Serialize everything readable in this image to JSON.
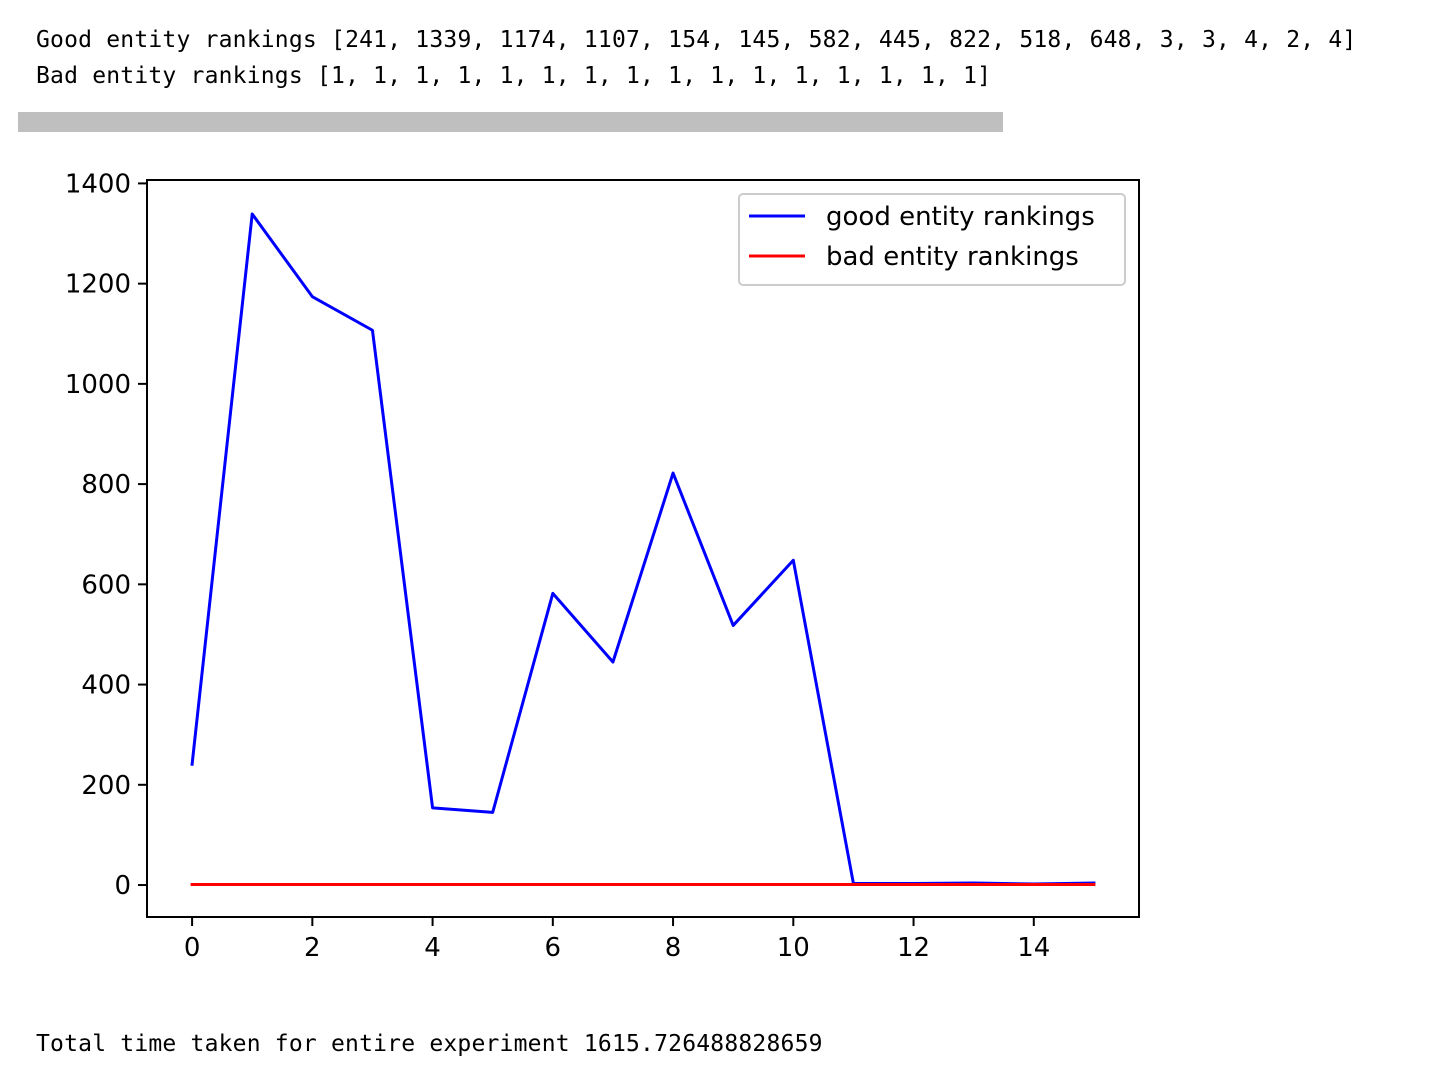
{
  "output": {
    "good_line_label": "Good entity rankings",
    "bad_line_label": "Bad entity rankings",
    "time_label": "Total time taken for entire experiment",
    "time_value": "1615.726488828659"
  },
  "progress": {
    "fraction": 1.0
  },
  "chart_data": {
    "type": "line",
    "x": [
      0,
      1,
      2,
      3,
      4,
      5,
      6,
      7,
      8,
      9,
      10,
      11,
      12,
      13,
      14,
      15
    ],
    "series": [
      {
        "name": "good entity rankings",
        "color": "#0000ff",
        "values": [
          241,
          1339,
          1174,
          1107,
          154,
          145,
          582,
          445,
          822,
          518,
          648,
          3,
          3,
          4,
          2,
          4
        ]
      },
      {
        "name": "bad entity rankings",
        "color": "#ff0000",
        "values": [
          1,
          1,
          1,
          1,
          1,
          1,
          1,
          1,
          1,
          1,
          1,
          1,
          1,
          1,
          1,
          1
        ]
      }
    ],
    "xticks": [
      0,
      2,
      4,
      6,
      8,
      10,
      12,
      14
    ],
    "yticks": [
      0,
      200,
      400,
      600,
      800,
      1000,
      1200,
      1400
    ],
    "xlim": [
      -0.75,
      15.75
    ],
    "ylim": [
      -63.8,
      1406.8
    ],
    "title": "",
    "xlabel": "",
    "ylabel": "",
    "grid": false,
    "legend": "top-right"
  }
}
